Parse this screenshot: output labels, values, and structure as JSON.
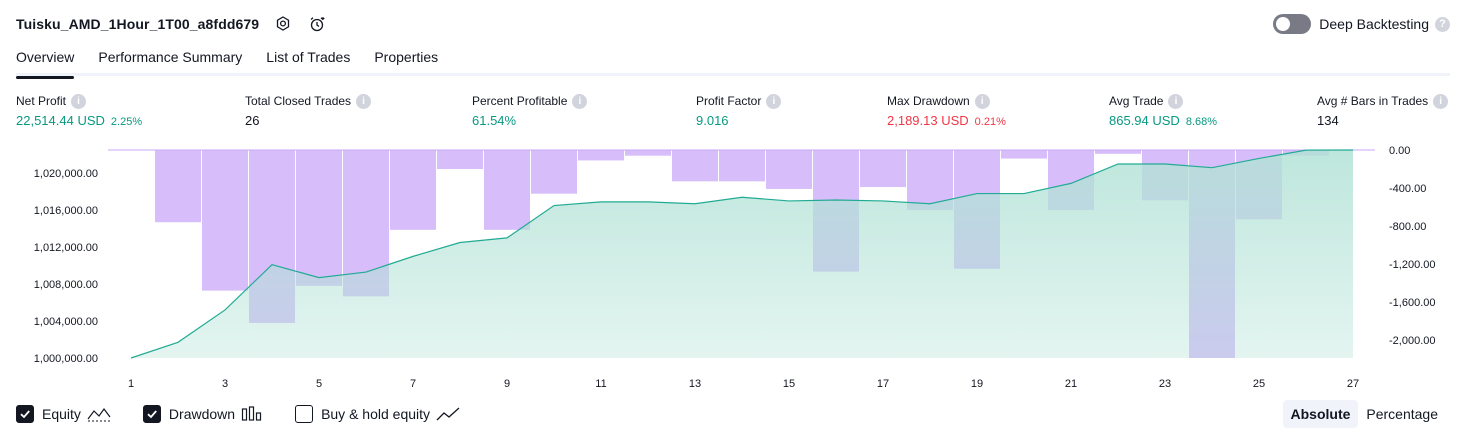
{
  "header": {
    "title": "Tuisku_AMD_1Hour_1T00_a8fdd679",
    "deep_backtesting_label": "Deep Backtesting",
    "help_glyph": "?"
  },
  "tabs": [
    {
      "label": "Overview"
    },
    {
      "label": "Performance Summary"
    },
    {
      "label": "List of Trades"
    },
    {
      "label": "Properties"
    }
  ],
  "metrics": [
    {
      "label": "Net Profit",
      "value": "22,514.44 USD",
      "pct": "2.25%",
      "color": "#089981"
    },
    {
      "label": "Total Closed Trades",
      "value": "26",
      "pct": "",
      "color": "#131722"
    },
    {
      "label": "Percent Profitable",
      "value": "61.54%",
      "pct": "",
      "color": "#089981"
    },
    {
      "label": "Profit Factor",
      "value": "9.016",
      "pct": "",
      "color": "#089981"
    },
    {
      "label": "Max Drawdown",
      "value": "2,189.13 USD",
      "pct": "0.21%",
      "color": "#f23645"
    },
    {
      "label": "Avg Trade",
      "value": "865.94 USD",
      "pct": "8.68%",
      "color": "#089981"
    },
    {
      "label": "Avg # Bars in Trades",
      "value": "134",
      "pct": "",
      "color": "#131722"
    }
  ],
  "info_glyph": "i",
  "chart_data": {
    "type": "line",
    "x": [
      1,
      2,
      3,
      4,
      5,
      6,
      7,
      8,
      9,
      10,
      11,
      12,
      13,
      14,
      15,
      16,
      17,
      18,
      19,
      20,
      21,
      22,
      23,
      24,
      25,
      26,
      27
    ],
    "x_tick_labels": [
      "1",
      "3",
      "5",
      "7",
      "9",
      "11",
      "13",
      "15",
      "17",
      "19",
      "21",
      "23",
      "25",
      "27"
    ],
    "series": [
      {
        "name": "Equity",
        "axis": "left",
        "style": "area",
        "values": [
          1000000,
          1001700,
          1005200,
          1010100,
          1008700,
          1009300,
          1011000,
          1012500,
          1013000,
          1016500,
          1016900,
          1016900,
          1016700,
          1017400,
          1017000,
          1017100,
          1017000,
          1016700,
          1017800,
          1017800,
          1018900,
          1021000,
          1021000,
          1020600,
          1021600,
          1022500,
          1022514.44
        ]
      },
      {
        "name": "Drawdown",
        "axis": "right",
        "style": "bar",
        "values": [
          null,
          -760,
          -1480,
          -1820,
          -1430,
          -1540,
          -840,
          -200,
          -840,
          -460,
          -110,
          -60,
          -330,
          -330,
          -410,
          -1280,
          -390,
          -630,
          -1250,
          -90,
          -630,
          -40,
          -530,
          -2189.13,
          -730,
          -60,
          null
        ]
      }
    ],
    "y_left": {
      "ticks": [
        1000000,
        1004000,
        1008000,
        1012000,
        1016000,
        1020000
      ],
      "tick_labels": [
        "1,000,000.00",
        "1,004,000.00",
        "1,008,000.00",
        "1,012,000.00",
        "1,016,000.00",
        "1,020,000.00"
      ],
      "lim": [
        1000000,
        1022514.44
      ]
    },
    "y_right": {
      "ticks": [
        0,
        -400,
        -800,
        -1200,
        -1600,
        -2000
      ],
      "tick_labels": [
        "0.00",
        "-400.00",
        "-800.00",
        "-1,200.00",
        "-1,600.00",
        "-2,000.00"
      ],
      "lim": [
        -2189.13,
        0
      ]
    },
    "colors": {
      "equity_line": "#22ab94",
      "equity_fill": "#b2e2d6",
      "drawdown_bar": "#c9a8f8"
    },
    "grid": false
  },
  "legend": [
    {
      "label": "Equity",
      "checked": true,
      "icon": "equity-line-icon"
    },
    {
      "label": "Drawdown",
      "checked": true,
      "icon": "drawdown-bars-icon"
    },
    {
      "label": "Buy & hold equity",
      "checked": false,
      "icon": "buy-hold-line-icon"
    }
  ],
  "modes": [
    {
      "label": "Absolute",
      "active": true
    },
    {
      "label": "Percentage",
      "active": false
    }
  ]
}
